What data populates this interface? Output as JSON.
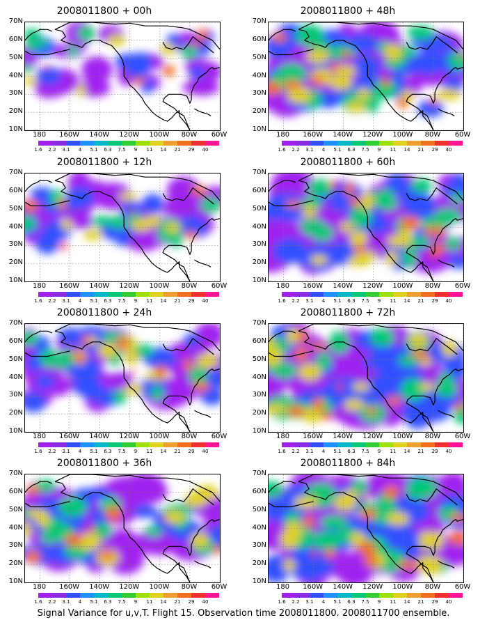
{
  "figure_caption": "Signal Variance for u,v,T. Flight 15. Observation time 2008011800. 2008011700 ensemble.",
  "lat_labels": [
    "70N",
    "60N",
    "50N",
    "40N",
    "30N",
    "20N",
    "10N"
  ],
  "lon_labels": [
    "180",
    "160W",
    "140W",
    "120W",
    "100W",
    "80W",
    "60W"
  ],
  "colorbar": {
    "colors": [
      "#ffffff",
      "#a020f0",
      "#8a2be2",
      "#3050ff",
      "#1e90ff",
      "#00b8c8",
      "#00c878",
      "#32cd32",
      "#a0e000",
      "#e0d020",
      "#f0a030",
      "#f07020",
      "#f03030",
      "#ff1493"
    ],
    "values": [
      "1.6",
      "2.2",
      "3.1",
      "4",
      "5.1",
      "6.3",
      "7.5",
      "9",
      "11",
      "14",
      "21",
      "29",
      "40"
    ]
  },
  "panels": [
    {
      "title": "2008011800 + 00h",
      "intensity": 0.25
    },
    {
      "title": "2008011800 + 48h",
      "intensity": 0.75
    },
    {
      "title": "2008011800 + 12h",
      "intensity": 0.4
    },
    {
      "title": "2008011800 + 60h",
      "intensity": 0.8
    },
    {
      "title": "2008011800 + 24h",
      "intensity": 0.55
    },
    {
      "title": "2008011800 + 72h",
      "intensity": 0.88
    },
    {
      "title": "2008011800 + 36h",
      "intensity": 0.65
    },
    {
      "title": "2008011800 + 84h",
      "intensity": 0.95
    }
  ]
}
